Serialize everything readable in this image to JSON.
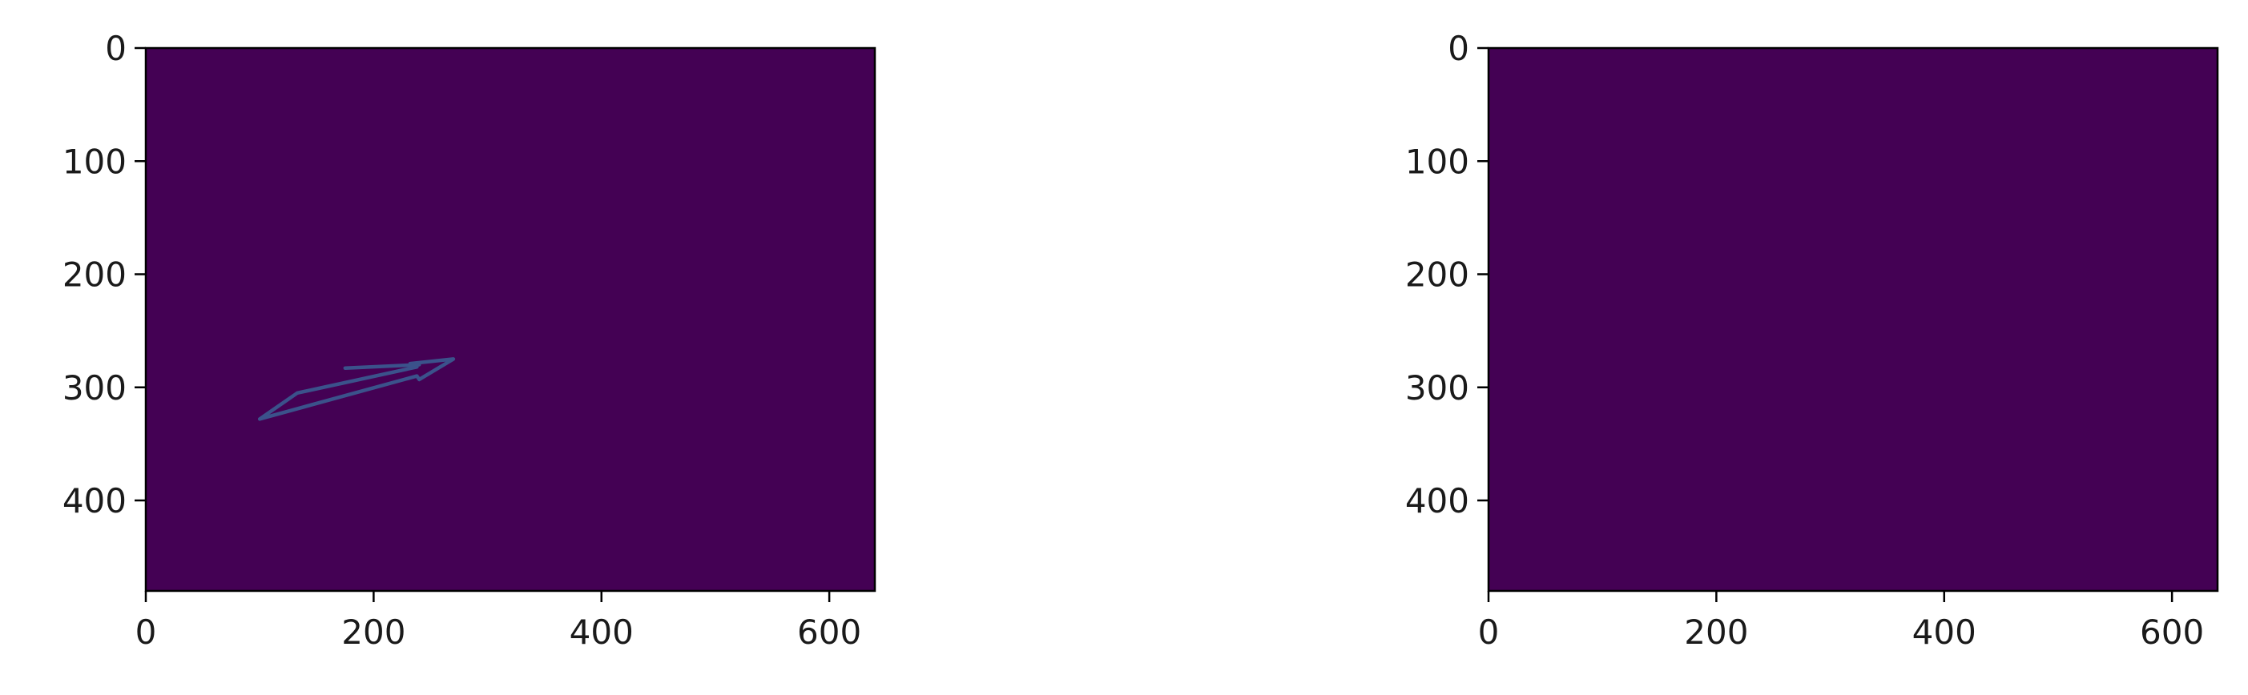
{
  "chart_data": [
    {
      "type": "heatmap",
      "title": "",
      "xlabel": "",
      "ylabel": "",
      "xlim": [
        0,
        640
      ],
      "ylim": [
        480,
        0
      ],
      "x_ticks": [
        "0",
        "200",
        "400",
        "600"
      ],
      "y_ticks": [
        "0",
        "100",
        "200",
        "300",
        "400"
      ],
      "x_tick_values": [
        0,
        200,
        400,
        600
      ],
      "y_tick_values": [
        0,
        100,
        200,
        300,
        400
      ],
      "background_color": "#440154",
      "grid": false,
      "annotations": [
        {
          "kind": "arrow-outline",
          "color": "#3b528b",
          "points": [
            [
              100,
              328
            ],
            [
              238,
              290
            ],
            [
              240,
              293
            ],
            [
              270,
              275
            ],
            [
              232,
              279
            ],
            [
              238,
              282
            ],
            [
              133,
              305
            ]
          ]
        },
        {
          "kind": "stroke",
          "color": "#3b528b",
          "points": [
            [
              175,
              283
            ],
            [
              240,
              280
            ]
          ]
        }
      ]
    },
    {
      "type": "heatmap",
      "title": "",
      "xlabel": "",
      "ylabel": "",
      "xlim": [
        0,
        640
      ],
      "ylim": [
        480,
        0
      ],
      "x_ticks": [
        "0",
        "200",
        "400",
        "600"
      ],
      "y_ticks": [
        "0",
        "100",
        "200",
        "300",
        "400"
      ],
      "x_tick_values": [
        0,
        200,
        400,
        600
      ],
      "y_tick_values": [
        0,
        100,
        200,
        300,
        400
      ],
      "background_color": "#440154",
      "grid": false,
      "annotations": []
    }
  ]
}
